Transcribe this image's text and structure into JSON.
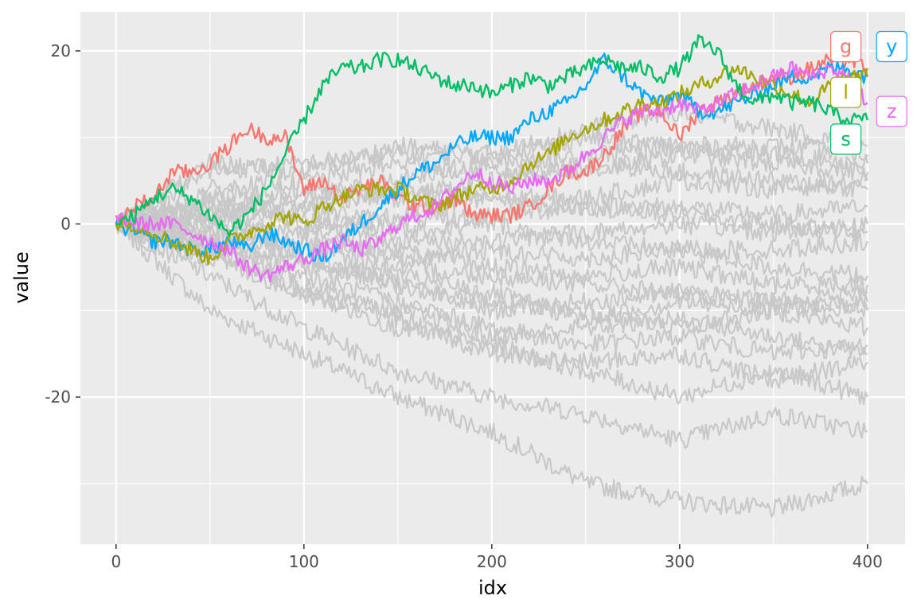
{
  "chart_data": {
    "type": "line",
    "xlabel": "idx",
    "ylabel": "value",
    "xlim": [
      -19,
      420
    ],
    "ylim": [
      -37,
      24.5
    ],
    "x_ticks": [
      0,
      100,
      200,
      300,
      400
    ],
    "x_tick_labels": [
      "0",
      "100",
      "200",
      "300",
      "400"
    ],
    "y_ticks": [
      -20,
      0,
      20
    ],
    "y_tick_labels": [
      "-20",
      "0",
      "20"
    ],
    "grid": true,
    "legend": "none",
    "colors": {
      "panel": "#ebebeb",
      "grid": "#ffffff",
      "background_series": "#c8c8c8"
    },
    "highlighted_series": [
      {
        "name": "g",
        "color": "#f8766d",
        "x": [
          0,
          10,
          20,
          30,
          40,
          50,
          60,
          70,
          80,
          90,
          100,
          110,
          120,
          130,
          140,
          150,
          160,
          170,
          180,
          190,
          200,
          210,
          220,
          230,
          240,
          250,
          260,
          270,
          280,
          290,
          300,
          310,
          320,
          330,
          340,
          350,
          360,
          370,
          380,
          390,
          400
        ],
        "values": [
          0,
          2,
          3,
          6,
          6,
          7,
          9,
          11,
          10,
          10,
          4,
          5,
          3,
          4,
          5,
          3,
          2,
          2,
          3,
          1,
          1,
          1,
          2,
          4,
          6,
          6,
          8,
          11,
          13,
          13,
          10,
          13,
          14,
          15,
          16,
          17,
          17,
          18,
          19,
          19,
          18
        ]
      },
      {
        "name": "y",
        "color": "#00a9ff",
        "x": [
          0,
          10,
          20,
          30,
          40,
          50,
          60,
          70,
          80,
          90,
          100,
          110,
          120,
          130,
          140,
          150,
          160,
          170,
          180,
          190,
          200,
          210,
          220,
          230,
          240,
          250,
          260,
          270,
          280,
          290,
          300,
          310,
          320,
          330,
          340,
          350,
          360,
          370,
          380,
          390,
          400
        ],
        "values": [
          0,
          -1,
          -2,
          -2,
          -3,
          -3,
          -2,
          -3,
          -1,
          -2,
          -3,
          -4,
          -2,
          0,
          2,
          4,
          6,
          7,
          9,
          10,
          10,
          10,
          12,
          13,
          14,
          16,
          19,
          17,
          15,
          14,
          15,
          13,
          13,
          14,
          15,
          16,
          17,
          17,
          18,
          18,
          17
        ]
      },
      {
        "name": "l",
        "color": "#a3a500",
        "x": [
          0,
          10,
          20,
          30,
          40,
          50,
          60,
          70,
          80,
          90,
          100,
          110,
          120,
          130,
          140,
          150,
          160,
          170,
          180,
          190,
          200,
          210,
          220,
          230,
          240,
          250,
          260,
          270,
          280,
          290,
          300,
          310,
          320,
          330,
          340,
          350,
          360,
          370,
          380,
          390,
          400
        ],
        "values": [
          0,
          0,
          -1,
          -2,
          -3,
          -4,
          -2,
          -1,
          0,
          1,
          0,
          2,
          3,
          4,
          4,
          4,
          3,
          2,
          3,
          4,
          4,
          5,
          7,
          8,
          10,
          11,
          12,
          13,
          14,
          14,
          15,
          16,
          17,
          18,
          17,
          16,
          15,
          14,
          16,
          17,
          17
        ]
      },
      {
        "name": "z",
        "color": "#e76bf3",
        "x": [
          0,
          10,
          20,
          30,
          40,
          50,
          60,
          70,
          80,
          90,
          100,
          110,
          120,
          130,
          140,
          150,
          160,
          170,
          180,
          190,
          200,
          210,
          220,
          230,
          240,
          250,
          260,
          270,
          280,
          290,
          300,
          310,
          320,
          330,
          340,
          350,
          360,
          370,
          380,
          390,
          400
        ],
        "values": [
          1,
          0,
          0,
          0,
          -1,
          -2,
          -3,
          -5,
          -6,
          -5,
          -4,
          -3,
          -2,
          -3,
          -2,
          0,
          1,
          2,
          4,
          6,
          5,
          4,
          5,
          5,
          6,
          8,
          10,
          12,
          13,
          13,
          14,
          13,
          14,
          15,
          16,
          17,
          18,
          17,
          18,
          17,
          14
        ]
      },
      {
        "name": "s",
        "color": "#00be67",
        "x": [
          0,
          10,
          20,
          30,
          40,
          50,
          60,
          70,
          80,
          90,
          100,
          110,
          120,
          130,
          140,
          150,
          160,
          170,
          180,
          190,
          200,
          210,
          220,
          230,
          240,
          250,
          260,
          270,
          280,
          290,
          300,
          310,
          320,
          330,
          340,
          350,
          360,
          370,
          380,
          390,
          400
        ],
        "values": [
          0,
          1,
          3,
          4,
          3,
          1,
          -1,
          1,
          4,
          8,
          12,
          16,
          18,
          18,
          19,
          19,
          18,
          17,
          16,
          16,
          15,
          16,
          17,
          16,
          17,
          18,
          19,
          18,
          18,
          17,
          18,
          21,
          20,
          16,
          14,
          15,
          14,
          14,
          13,
          12,
          12
        ]
      }
    ],
    "background_series": [
      {
        "x": [
          0,
          50,
          100,
          150,
          200,
          250,
          300,
          350,
          400
        ],
        "values": [
          0,
          -10,
          -15,
          -20,
          -24,
          -30,
          -32,
          -33,
          -30
        ]
      },
      {
        "x": [
          0,
          50,
          100,
          150,
          200,
          250,
          300,
          350,
          400
        ],
        "values": [
          0,
          -6,
          -12,
          -17,
          -20,
          -22,
          -25,
          -22,
          -24
        ]
      },
      {
        "x": [
          0,
          50,
          100,
          150,
          200,
          250,
          300,
          350,
          400
        ],
        "values": [
          0,
          -3,
          -8,
          -12,
          -14,
          -17,
          -20,
          -17,
          -20
        ]
      },
      {
        "x": [
          0,
          50,
          100,
          150,
          200,
          250,
          300,
          350,
          400
        ],
        "values": [
          0,
          -2,
          -6,
          -9,
          -12,
          -14,
          -13,
          -15,
          -14
        ]
      },
      {
        "x": [
          0,
          50,
          100,
          150,
          200,
          250,
          300,
          350,
          400
        ],
        "values": [
          0,
          -1,
          -4,
          -7,
          -9,
          -10,
          -12,
          -10,
          -12
        ]
      },
      {
        "x": [
          0,
          50,
          100,
          150,
          200,
          250,
          300,
          350,
          400
        ],
        "values": [
          0,
          -2,
          -5,
          -6,
          -8,
          -11,
          -9,
          -10,
          -9
        ]
      },
      {
        "x": [
          0,
          50,
          100,
          150,
          200,
          250,
          300,
          350,
          400
        ],
        "values": [
          0,
          0,
          -3,
          -5,
          -6,
          -7,
          -8,
          -9,
          -8
        ]
      },
      {
        "x": [
          0,
          50,
          100,
          150,
          200,
          250,
          300,
          350,
          400
        ],
        "values": [
          0,
          1,
          -2,
          -3,
          -5,
          -6,
          -5,
          -7,
          -7
        ]
      },
      {
        "x": [
          0,
          50,
          100,
          150,
          200,
          250,
          300,
          350,
          400
        ],
        "values": [
          0,
          -1,
          -2,
          -4,
          -3,
          -4,
          -3,
          -3,
          -2
        ]
      },
      {
        "x": [
          0,
          50,
          100,
          150,
          200,
          250,
          300,
          350,
          400
        ],
        "values": [
          0,
          2,
          0,
          -2,
          -2,
          -1,
          0,
          -1,
          0
        ]
      },
      {
        "x": [
          0,
          50,
          100,
          150,
          200,
          250,
          300,
          350,
          400
        ],
        "values": [
          0,
          1,
          2,
          0,
          1,
          2,
          2,
          1,
          2
        ]
      },
      {
        "x": [
          0,
          50,
          100,
          150,
          200,
          250,
          300,
          350,
          400
        ],
        "values": [
          0,
          3,
          2,
          4,
          3,
          3,
          5,
          4,
          5
        ]
      },
      {
        "x": [
          0,
          50,
          100,
          150,
          200,
          250,
          300,
          350,
          400
        ],
        "values": [
          0,
          4,
          5,
          7,
          6,
          6,
          8,
          7,
          6
        ]
      },
      {
        "x": [
          0,
          50,
          100,
          150,
          200,
          250,
          300,
          350,
          400
        ],
        "values": [
          0,
          6,
          7,
          8,
          8,
          10,
          9,
          9,
          8
        ]
      },
      {
        "x": [
          0,
          50,
          100,
          150,
          200,
          250,
          300,
          350,
          400
        ],
        "values": [
          0,
          7,
          6,
          9,
          8,
          11,
          13,
          11,
          9
        ]
      },
      {
        "x": [
          0,
          50,
          100,
          150,
          200,
          250,
          300,
          350,
          400
        ],
        "values": [
          0,
          1,
          3,
          5,
          7,
          8,
          9,
          8,
          7
        ]
      },
      {
        "x": [
          0,
          50,
          100,
          150,
          200,
          250,
          300,
          350,
          400
        ],
        "values": [
          0,
          -3,
          -7,
          -11,
          -15,
          -16,
          -15,
          -18,
          -16
        ]
      },
      {
        "x": [
          0,
          50,
          100,
          150,
          200,
          250,
          300,
          350,
          400
        ],
        "values": [
          0,
          -4,
          -8,
          -10,
          -13,
          -12,
          -11,
          -13,
          -15
        ]
      },
      {
        "x": [
          0,
          50,
          100,
          150,
          200,
          250,
          300,
          350,
          400
        ],
        "values": [
          0,
          -2,
          -4,
          -7,
          -10,
          -9,
          -8,
          -9,
          -10
        ]
      },
      {
        "x": [
          0,
          50,
          100,
          150,
          200,
          250,
          300,
          350,
          400
        ],
        "values": [
          0,
          2,
          1,
          -1,
          0,
          -2,
          -3,
          -5,
          -6
        ]
      },
      {
        "x": [
          0,
          50,
          100,
          150,
          200,
          250,
          300,
          350,
          400
        ],
        "values": [
          0,
          0,
          -1,
          1,
          3,
          2,
          1,
          0,
          -1
        ]
      },
      {
        "x": [
          0,
          50,
          100,
          150,
          200,
          250,
          300,
          350,
          400
        ],
        "values": [
          0,
          3,
          4,
          3,
          5,
          7,
          6,
          5,
          4
        ]
      }
    ]
  }
}
